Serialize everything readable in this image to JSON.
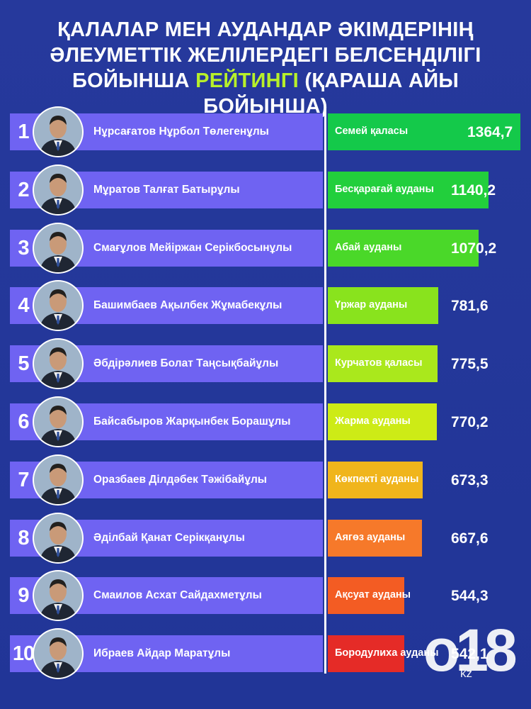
{
  "header": {
    "line1": "ҚАЛАЛАР МЕН АУДАНДАР ӘКІМДЕРІНІҢ",
    "line2": "ӘЛЕУМЕТТІК ЖЕЛІЛЕРДЕГІ БЕЛСЕНДІЛІГІ",
    "line3_pre": "БОЙЫНША ",
    "line3_highlight": "РЕЙТИНГІ",
    "line3_post": " (ҚАРАША АЙЫ БОЙЫНША)"
  },
  "colors": {
    "background": "#23389a",
    "name_bar": "#6f63f2",
    "highlight": "#b8f02a"
  },
  "logo": {
    "mark": "o18",
    "suffix": "kz"
  },
  "chart_data": {
    "type": "bar",
    "orientation": "horizontal",
    "title": "ҚАЛАЛАР МЕН АУДАНДАР ӘКІМДЕРІНІҢ ӘЛЕУМЕТТІК ЖЕЛІЛЕРДЕГІ БЕЛСЕНДІЛІГІ БОЙЫНША РЕЙТИНГІ (ҚАРАША АЙЫ БОЙЫНША)",
    "ranks": [
      "1",
      "2",
      "3",
      "4",
      "5",
      "6",
      "7",
      "8",
      "9",
      "10"
    ],
    "names": [
      "Нұрсағатов Нұрбол Төлегенұлы",
      "Мұратов Талғат Батырұлы",
      "Смағұлов Мейіржан Серікбосынұлы",
      "Башимбаев Ақылбек Жұмабекұлы",
      "Әбдірәлиев Болат Таңсықбайұлы",
      "Байсабыров Жарқынбек Борашұлы",
      "Оразбаев Ділдәбек Тәжібайұлы",
      "Әділбай Қанат Серікқанұлы",
      "Смаилов Асхат Сайдахметұлы",
      "Ибраев Айдар Маратұлы"
    ],
    "categories": [
      "Семей қаласы",
      "Бесқарағай ауданы",
      "Абай ауданы",
      "Үржар ауданы",
      "Курчатов қаласы",
      "Жарма ауданы",
      "Көкпекті ауданы",
      "Аягөз ауданы",
      "Ақсуат ауданы",
      "Бородулиха ауданы"
    ],
    "values": [
      1364.7,
      1140.2,
      1070.2,
      781.6,
      775.5,
      770.2,
      673.3,
      667.6,
      544.3,
      542.1
    ],
    "value_labels": [
      "1364,7",
      "1140,2",
      "1070,2",
      "781,6",
      "775,5",
      "770,2",
      "673,3",
      "667,6",
      "544,3",
      "542,1"
    ],
    "bar_colors": [
      "#14c94a",
      "#22cf3c",
      "#4ad829",
      "#89e31d",
      "#aae81c",
      "#cdeb16",
      "#f0b51c",
      "#f6792a",
      "#f35c23",
      "#e52b27"
    ],
    "xlim": [
      0,
      1364.7
    ],
    "legend": "none",
    "grid": false
  }
}
